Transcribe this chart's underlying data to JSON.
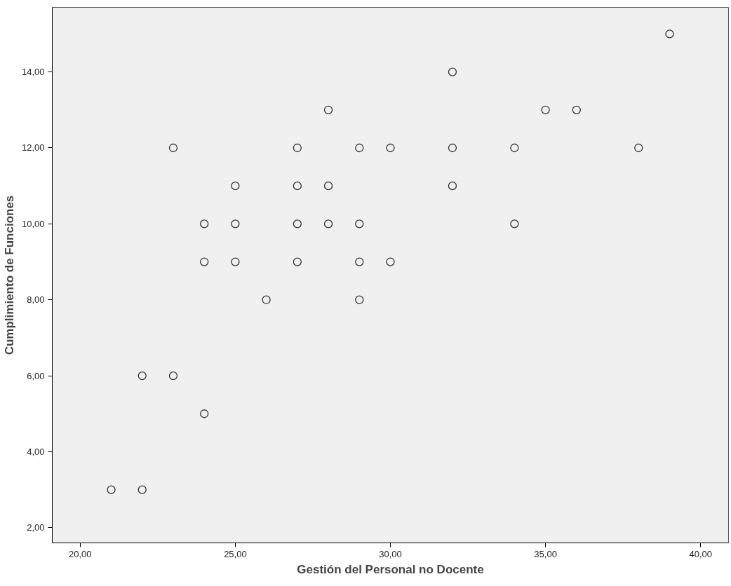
{
  "chart_data": {
    "type": "scatter",
    "xlabel": "Gestión del Personal no Docente",
    "ylabel": "Cumplimiento de Funciones",
    "x": [
      21,
      22,
      22,
      23,
      23,
      24,
      24,
      24,
      25,
      25,
      25,
      26,
      27,
      27,
      27,
      27,
      28,
      28,
      28,
      29,
      29,
      29,
      29,
      30,
      30,
      32,
      32,
      32,
      34,
      34,
      35,
      36,
      38,
      39
    ],
    "series": [
      {
        "color": "#333333",
        "values": [
          3,
          3,
          6,
          6,
          12,
          5,
          9,
          10,
          9,
          10,
          11,
          8,
          9,
          10,
          11,
          12,
          10,
          11,
          13,
          8,
          9,
          10,
          12,
          9,
          12,
          11,
          12,
          14,
          10,
          12,
          13,
          13,
          12,
          15
        ]
      }
    ],
    "xlim": [
      19.1,
      40.9
    ],
    "ylim": [
      1.6,
      15.7
    ],
    "xticks": [
      {
        "value": 20,
        "label": "20,00"
      },
      {
        "value": 25,
        "label": "25,00"
      },
      {
        "value": 30,
        "label": "30,00"
      },
      {
        "value": 35,
        "label": "35,00"
      },
      {
        "value": 40,
        "label": "40,00"
      }
    ],
    "yticks": [
      {
        "value": 2,
        "label": "2,00"
      },
      {
        "value": 4,
        "label": "4,00"
      },
      {
        "value": 6,
        "label": "6,00"
      },
      {
        "value": 8,
        "label": "8,00"
      },
      {
        "value": 10,
        "label": "10,00"
      },
      {
        "value": 12,
        "label": "12,00"
      },
      {
        "value": 14,
        "label": "14,00"
      }
    ],
    "grid": false,
    "marker": "circle"
  }
}
